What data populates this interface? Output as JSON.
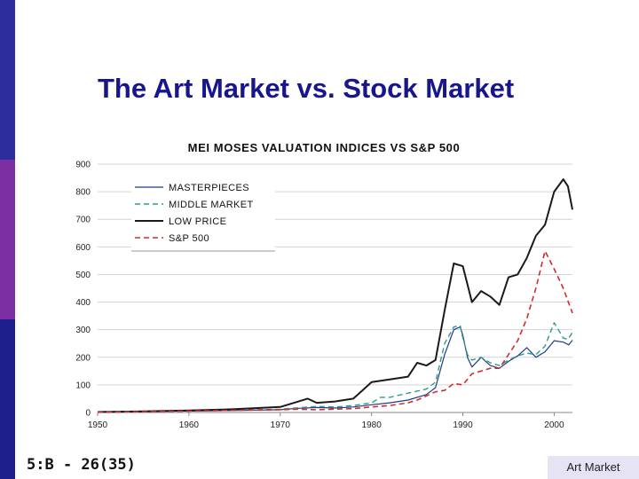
{
  "slide": {
    "title": "The Art Market vs. Stock Market",
    "footer_left": "5:B - 26(35)",
    "footer_right": "Art Market",
    "colors": {
      "title": "#17168c",
      "sidebar_top": "#2d2d9e",
      "sidebar_mid": "#7b2fa3",
      "sidebar_bottom": "#1e1e8c"
    }
  },
  "chart_data": {
    "type": "line",
    "title": "MEI MOSES VALUATION INDICES VS S&P 500",
    "xlabel": "",
    "ylabel": "",
    "xlim": [
      1950,
      2002
    ],
    "ylim": [
      0,
      900
    ],
    "x_ticks": [
      1950,
      1960,
      1970,
      1980,
      1990,
      2000
    ],
    "y_ticks": [
      0,
      100,
      200,
      300,
      400,
      500,
      600,
      700,
      800,
      900
    ],
    "grid": true,
    "legend_position": "top-left",
    "series": [
      {
        "name": "MASTERPIECES",
        "color": "#1f3b8c",
        "dash": "solid",
        "width": 1.2,
        "points": [
          [
            1950,
            3
          ],
          [
            1955,
            4
          ],
          [
            1960,
            5
          ],
          [
            1965,
            7
          ],
          [
            1970,
            10
          ],
          [
            1972,
            15
          ],
          [
            1974,
            18
          ],
          [
            1976,
            16
          ],
          [
            1978,
            20
          ],
          [
            1980,
            28
          ],
          [
            1982,
            35
          ],
          [
            1984,
            45
          ],
          [
            1986,
            65
          ],
          [
            1987,
            90
          ],
          [
            1988,
            210
          ],
          [
            1989,
            300
          ],
          [
            1989.7,
            310
          ],
          [
            1990,
            280
          ],
          [
            1990.5,
            200
          ],
          [
            1991,
            165
          ],
          [
            1992,
            200
          ],
          [
            1993,
            170
          ],
          [
            1994,
            160
          ],
          [
            1995,
            185
          ],
          [
            1996,
            205
          ],
          [
            1997,
            235
          ],
          [
            1998,
            200
          ],
          [
            1999,
            220
          ],
          [
            2000,
            260
          ],
          [
            2001,
            255
          ],
          [
            2001.6,
            245
          ],
          [
            2002,
            262
          ]
        ]
      },
      {
        "name": "MIDDLE MARKET",
        "color": "#2e9a8f",
        "dash": "dashed",
        "width": 1.4,
        "points": [
          [
            1950,
            2
          ],
          [
            1955,
            3
          ],
          [
            1960,
            5
          ],
          [
            1965,
            8
          ],
          [
            1970,
            12
          ],
          [
            1972,
            17
          ],
          [
            1974,
            22
          ],
          [
            1976,
            20
          ],
          [
            1978,
            25
          ],
          [
            1980,
            35
          ],
          [
            1981,
            55
          ],
          [
            1982,
            55
          ],
          [
            1984,
            70
          ],
          [
            1986,
            85
          ],
          [
            1987,
            110
          ],
          [
            1988,
            250
          ],
          [
            1989,
            310
          ],
          [
            1989.7,
            315
          ],
          [
            1990,
            270
          ],
          [
            1990.5,
            210
          ],
          [
            1991,
            190
          ],
          [
            1992,
            200
          ],
          [
            1993,
            180
          ],
          [
            1994,
            170
          ],
          [
            1995,
            190
          ],
          [
            1996,
            205
          ],
          [
            1997,
            215
          ],
          [
            1998,
            210
          ],
          [
            1999,
            240
          ],
          [
            2000,
            325
          ],
          [
            2001,
            270
          ],
          [
            2001.5,
            265
          ],
          [
            2002,
            290
          ]
        ]
      },
      {
        "name": "LOW PRICE",
        "color": "#1a1a1a",
        "dash": "solid",
        "width": 2.0,
        "points": [
          [
            1950,
            2
          ],
          [
            1955,
            4
          ],
          [
            1960,
            7
          ],
          [
            1965,
            12
          ],
          [
            1970,
            20
          ],
          [
            1972,
            40
          ],
          [
            1973,
            50
          ],
          [
            1974,
            35
          ],
          [
            1976,
            40
          ],
          [
            1978,
            50
          ],
          [
            1979,
            80
          ],
          [
            1980,
            110
          ],
          [
            1982,
            120
          ],
          [
            1984,
            130
          ],
          [
            1985,
            180
          ],
          [
            1986,
            170
          ],
          [
            1987,
            190
          ],
          [
            1988,
            370
          ],
          [
            1989,
            540
          ],
          [
            1990,
            530
          ],
          [
            1991,
            400
          ],
          [
            1992,
            440
          ],
          [
            1993,
            420
          ],
          [
            1994,
            390
          ],
          [
            1995,
            490
          ],
          [
            1996,
            500
          ],
          [
            1997,
            560
          ],
          [
            1998,
            640
          ],
          [
            1999,
            680
          ],
          [
            2000,
            800
          ],
          [
            2001,
            845
          ],
          [
            2001.5,
            820
          ],
          [
            2002,
            735
          ]
        ]
      },
      {
        "name": "S&P 500",
        "color": "#d42b2b",
        "dash": "dashed",
        "width": 1.6,
        "points": [
          [
            1950,
            2
          ],
          [
            1955,
            3
          ],
          [
            1960,
            5
          ],
          [
            1965,
            8
          ],
          [
            1970,
            10
          ],
          [
            1972,
            12
          ],
          [
            1974,
            10
          ],
          [
            1976,
            12
          ],
          [
            1978,
            14
          ],
          [
            1980,
            20
          ],
          [
            1982,
            25
          ],
          [
            1984,
            35
          ],
          [
            1985,
            45
          ],
          [
            1986,
            60
          ],
          [
            1987,
            75
          ],
          [
            1988,
            80
          ],
          [
            1989,
            105
          ],
          [
            1990,
            100
          ],
          [
            1991,
            140
          ],
          [
            1992,
            150
          ],
          [
            1993,
            160
          ],
          [
            1994,
            160
          ],
          [
            1995,
            210
          ],
          [
            1996,
            260
          ],
          [
            1997,
            340
          ],
          [
            1998,
            450
          ],
          [
            1999,
            585
          ],
          [
            2000,
            520
          ],
          [
            2001,
            450
          ],
          [
            2002,
            360
          ]
        ]
      }
    ]
  }
}
